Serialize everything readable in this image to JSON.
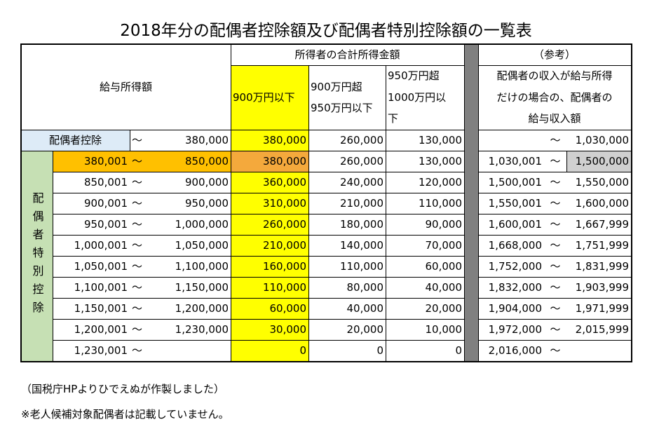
{
  "title": "2018年分の配偶者控除額及び配偶者特別控除額の一覧表",
  "header": {
    "income_label": "給与所得額",
    "total_income_label": "所得者の合計所得金額",
    "reference_label": "（参考）",
    "columns": [
      [
        "900万円以下"
      ],
      [
        "900万円超",
        "950万円以下"
      ],
      [
        "950万円超",
        "1000万円以",
        "下"
      ]
    ],
    "spouse_column": [
      "配偶者の収入が給与所得",
      "だけの場合の、配偶者の",
      "給与収入額"
    ]
  },
  "deduction_row": {
    "label": "配偶者控除",
    "income_sep": "〜",
    "income_to": "380,000",
    "amounts": [
      "380,000",
      "260,000",
      "130,000"
    ],
    "spouse_sep": "〜",
    "spouse_to": "1,030,000"
  },
  "special_label": "配偶者特別控除",
  "special_rows": [
    {
      "income_from": "380,001",
      "income_sep": "〜",
      "income_to": "850,000",
      "amounts": [
        "380,000",
        "260,000",
        "130,000"
      ],
      "spouse_from": "1,030,001",
      "spouse_sep": "〜",
      "spouse_to": "1,500,000"
    },
    {
      "income_from": "850,001",
      "income_sep": "〜",
      "income_to": "900,000",
      "amounts": [
        "360,000",
        "240,000",
        "120,000"
      ],
      "spouse_from": "1,500,001",
      "spouse_sep": "〜",
      "spouse_to": "1,550,000"
    },
    {
      "income_from": "900,001",
      "income_sep": "〜",
      "income_to": "950,000",
      "amounts": [
        "310,000",
        "210,000",
        "110,000"
      ],
      "spouse_from": "1,550,001",
      "spouse_sep": "〜",
      "spouse_to": "1,600,000"
    },
    {
      "income_from": "950,001",
      "income_sep": "〜",
      "income_to": "1,000,000",
      "amounts": [
        "260,000",
        "180,000",
        "90,000"
      ],
      "spouse_from": "1,600,001",
      "spouse_sep": "〜",
      "spouse_to": "1,667,999"
    },
    {
      "income_from": "1,000,001",
      "income_sep": "〜",
      "income_to": "1,050,000",
      "amounts": [
        "210,000",
        "140,000",
        "70,000"
      ],
      "spouse_from": "1,668,000",
      "spouse_sep": "〜",
      "spouse_to": "1,751,999"
    },
    {
      "income_from": "1,050,001",
      "income_sep": "〜",
      "income_to": "1,100,000",
      "amounts": [
        "160,000",
        "110,000",
        "60,000"
      ],
      "spouse_from": "1,752,000",
      "spouse_sep": "〜",
      "spouse_to": "1,831,999"
    },
    {
      "income_from": "1,100,001",
      "income_sep": "〜",
      "income_to": "1,150,000",
      "amounts": [
        "110,000",
        "80,000",
        "40,000"
      ],
      "spouse_from": "1,832,000",
      "spouse_sep": "〜",
      "spouse_to": "1,903,999"
    },
    {
      "income_from": "1,150,001",
      "income_sep": "〜",
      "income_to": "1,200,000",
      "amounts": [
        "60,000",
        "40,000",
        "20,000"
      ],
      "spouse_from": "1,904,000",
      "spouse_sep": "〜",
      "spouse_to": "1,971,999"
    },
    {
      "income_from": "1,200,001",
      "income_sep": "〜",
      "income_to": "1,230,000",
      "amounts": [
        "30,000",
        "20,000",
        "10,000"
      ],
      "spouse_from": "1,972,000",
      "spouse_sep": "〜",
      "spouse_to": "2,015,999"
    },
    {
      "income_from": "1,230,001",
      "income_sep": "〜",
      "amounts": [
        "0",
        "0",
        "0"
      ],
      "spouse_from": "2,016,000",
      "spouse_sep": "〜"
    }
  ],
  "notes": [
    "（国税庁HPよりひでえぬが作製しました）",
    "※老人候補対象配偶者は記載していません。"
  ]
}
